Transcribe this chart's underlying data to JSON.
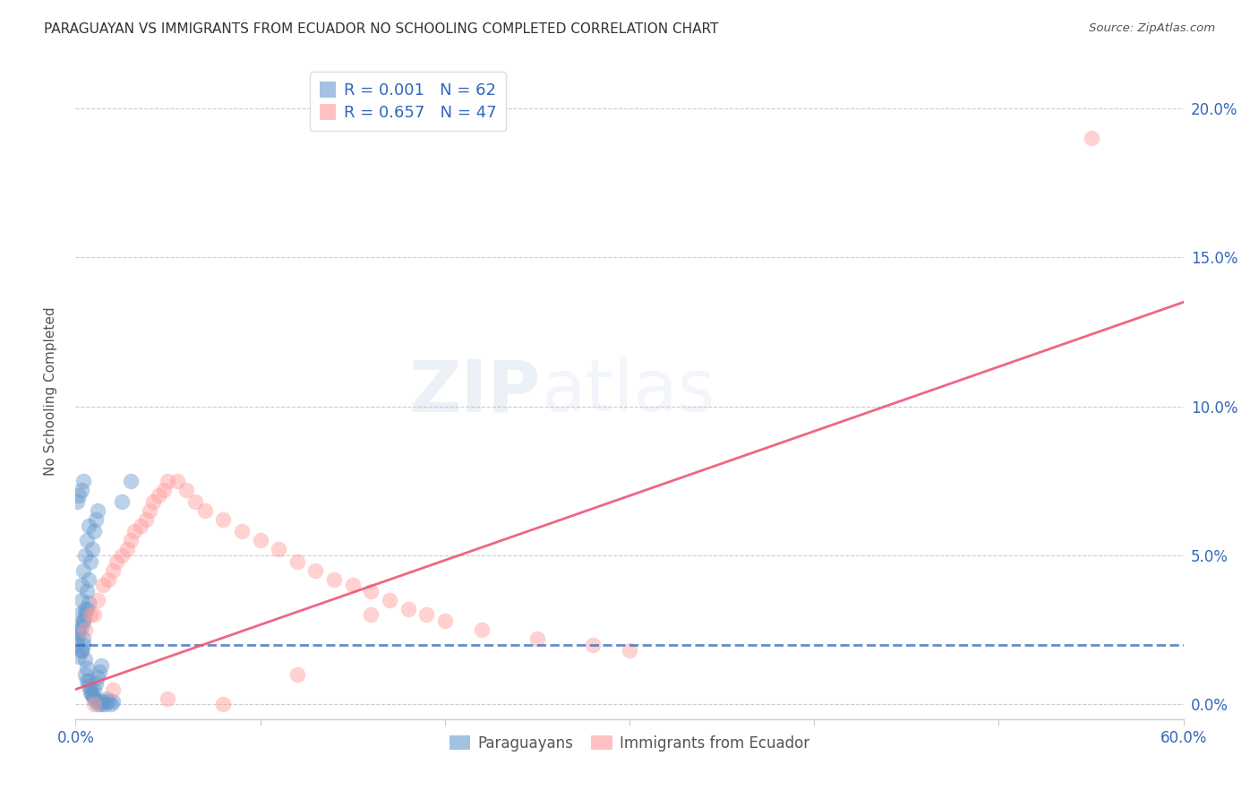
{
  "title": "PARAGUAYAN VS IMMIGRANTS FROM ECUADOR NO SCHOOLING COMPLETED CORRELATION CHART",
  "source": "Source: ZipAtlas.com",
  "ylabel": "No Schooling Completed",
  "xlim": [
    0.0,
    0.6
  ],
  "ylim": [
    -0.005,
    0.215
  ],
  "xticks": [
    0.0,
    0.1,
    0.2,
    0.3,
    0.4,
    0.5,
    0.6
  ],
  "xticklabels": [
    "0.0%",
    "",
    "",
    "",
    "",
    "",
    "60.0%"
  ],
  "yticks": [
    0.0,
    0.05,
    0.1,
    0.15,
    0.2
  ],
  "yticklabels": [
    "0.0%",
    "5.0%",
    "10.0%",
    "15.0%",
    "20.0%"
  ],
  "blue_color": "#6699CC",
  "pink_color": "#FF9999",
  "blue_line_color": "#3366BB",
  "pink_line_color": "#EE5577",
  "legend_blue_R": "0.001",
  "legend_blue_N": "62",
  "legend_pink_R": "0.657",
  "legend_pink_N": "47",
  "watermark_zip": "ZIP",
  "watermark_atlas": "atlas",
  "blue_scatter_x": [
    0.001,
    0.002,
    0.002,
    0.003,
    0.003,
    0.003,
    0.004,
    0.004,
    0.004,
    0.005,
    0.005,
    0.005,
    0.006,
    0.006,
    0.006,
    0.007,
    0.007,
    0.007,
    0.008,
    0.008,
    0.009,
    0.009,
    0.01,
    0.01,
    0.011,
    0.011,
    0.012,
    0.012,
    0.013,
    0.014,
    0.015,
    0.016,
    0.017,
    0.018,
    0.019,
    0.02,
    0.001,
    0.002,
    0.003,
    0.004,
    0.005,
    0.006,
    0.007,
    0.008,
    0.009,
    0.01,
    0.011,
    0.012,
    0.013,
    0.014,
    0.002,
    0.003,
    0.004,
    0.001,
    0.002,
    0.003,
    0.004,
    0.005,
    0.006,
    0.007,
    0.025,
    0.03
  ],
  "blue_scatter_y": [
    0.02,
    0.025,
    0.03,
    0.018,
    0.035,
    0.04,
    0.022,
    0.028,
    0.045,
    0.015,
    0.032,
    0.05,
    0.012,
    0.038,
    0.055,
    0.008,
    0.042,
    0.06,
    0.005,
    0.048,
    0.003,
    0.052,
    0.002,
    0.058,
    0.001,
    0.062,
    0.0,
    0.065,
    0.001,
    0.0,
    0.001,
    0.0,
    0.002,
    0.001,
    0.0,
    0.001,
    0.068,
    0.07,
    0.072,
    0.075,
    0.01,
    0.008,
    0.006,
    0.004,
    0.003,
    0.005,
    0.007,
    0.009,
    0.011,
    0.013,
    0.016,
    0.018,
    0.02,
    0.022,
    0.024,
    0.026,
    0.028,
    0.03,
    0.032,
    0.034,
    0.068,
    0.075
  ],
  "pink_scatter_x": [
    0.005,
    0.008,
    0.01,
    0.012,
    0.015,
    0.018,
    0.02,
    0.022,
    0.025,
    0.028,
    0.03,
    0.032,
    0.035,
    0.038,
    0.04,
    0.042,
    0.045,
    0.048,
    0.05,
    0.055,
    0.06,
    0.065,
    0.07,
    0.08,
    0.09,
    0.1,
    0.11,
    0.12,
    0.13,
    0.14,
    0.15,
    0.16,
    0.17,
    0.18,
    0.19,
    0.2,
    0.22,
    0.25,
    0.28,
    0.3,
    0.02,
    0.05,
    0.08,
    0.12,
    0.16,
    0.55,
    0.01
  ],
  "pink_scatter_y": [
    0.025,
    0.03,
    0.03,
    0.035,
    0.04,
    0.042,
    0.045,
    0.048,
    0.05,
    0.052,
    0.055,
    0.058,
    0.06,
    0.062,
    0.065,
    0.068,
    0.07,
    0.072,
    0.075,
    0.075,
    0.072,
    0.068,
    0.065,
    0.062,
    0.058,
    0.055,
    0.052,
    0.048,
    0.045,
    0.042,
    0.04,
    0.038,
    0.035,
    0.032,
    0.03,
    0.028,
    0.025,
    0.022,
    0.02,
    0.018,
    0.005,
    0.002,
    0.0,
    0.01,
    0.03,
    0.19,
    0.0
  ],
  "blue_trend_x": [
    0.0,
    0.6
  ],
  "blue_trend_y": [
    0.02,
    0.02
  ],
  "pink_trend_x": [
    0.0,
    0.6
  ],
  "pink_trend_y": [
    0.005,
    0.135
  ],
  "grid_color": "#CCCCCC",
  "background_color": "#FFFFFF"
}
